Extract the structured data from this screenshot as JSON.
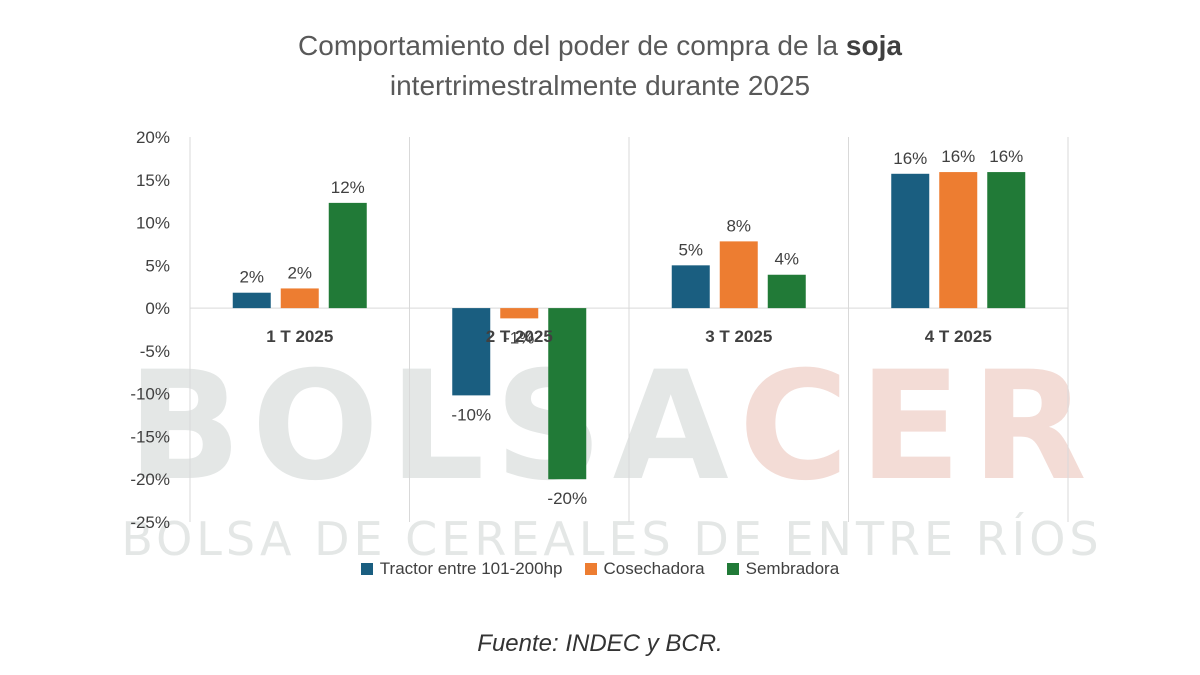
{
  "title": {
    "line1_prefix": "Comportamiento del poder de compra de la ",
    "line1_bold": "soja",
    "line2": "intertrimestralmente  durante 2025"
  },
  "watermark": {
    "part1": "BOLSA",
    "part2": "CER",
    "subtitle": "BOLSA DE CEREALES DE ENTRE RÍOS"
  },
  "source": "Fuente: INDEC y BCR.",
  "colors": {
    "tractor": "#1a5e80",
    "cosechadora": "#ed7d31",
    "sembradora": "#217a37",
    "gridline": "#d9d9d9",
    "axis_text": "#404040",
    "watermark_gray": "#e4e7e6",
    "watermark_red": "#f3dcd6"
  },
  "chart_data": {
    "type": "bar",
    "title": "Comportamiento del poder de compra de la soja intertrimestralmente  durante 2025",
    "categories": [
      "1 T 2025",
      "2 T 2025",
      "3 T 2025",
      "4 T 2025"
    ],
    "series": [
      {
        "name": "Tractor entre 101-200hp",
        "color_key": "tractor",
        "values": [
          1.8,
          -10.2,
          5.0,
          15.7
        ],
        "labels": [
          "2%",
          "-10%",
          "5%",
          "16%"
        ]
      },
      {
        "name": "Cosechadora",
        "color_key": "cosechadora",
        "values": [
          2.3,
          -1.2,
          7.8,
          15.9
        ],
        "labels": [
          "2%",
          "-1%",
          "8%",
          "16%"
        ]
      },
      {
        "name": "Sembradora",
        "color_key": "sembradora",
        "values": [
          12.3,
          -20.0,
          3.9,
          15.9
        ],
        "labels": [
          "12%",
          "-20%",
          "4%",
          "16%"
        ]
      }
    ],
    "yticks": [
      "20%",
      "15%",
      "10%",
      "5%",
      "0%",
      "-5%",
      "-10%",
      "-15%",
      "-20%",
      "-25%"
    ],
    "ytick_values": [
      20,
      15,
      10,
      5,
      0,
      -5,
      -10,
      -15,
      -20,
      -25
    ],
    "ylim": [
      -25,
      20
    ],
    "xlabel": "",
    "ylabel": "",
    "legend_position": "bottom",
    "grid": "vertical separators"
  }
}
